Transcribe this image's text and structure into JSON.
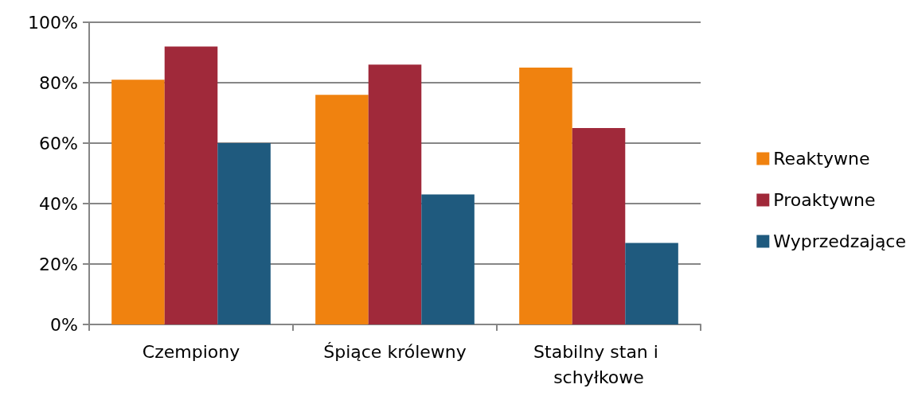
{
  "chart_data": {
    "type": "bar",
    "categories": [
      "Czempiony",
      "Śpiące królewny",
      "Stabilny stan i schyłkowe"
    ],
    "series": [
      {
        "name": "Reaktywne",
        "color": "#f0820f",
        "values": [
          81,
          76,
          85
        ]
      },
      {
        "name": "Proaktywne",
        "color": "#a0293a",
        "values": [
          92,
          86,
          65
        ]
      },
      {
        "name": "Wyprzedzające",
        "color": "#1f5a7e",
        "values": [
          60,
          43,
          27
        ]
      }
    ],
    "ylim": [
      0,
      100
    ],
    "yticks": [
      {
        "value": 0,
        "label": "0%"
      },
      {
        "value": 20,
        "label": "20%"
      },
      {
        "value": 40,
        "label": "40%"
      },
      {
        "value": 60,
        "label": "60%"
      },
      {
        "value": 80,
        "label": "80%"
      },
      {
        "value": 100,
        "label": "100%"
      }
    ],
    "grid": "y",
    "legend": "right"
  }
}
